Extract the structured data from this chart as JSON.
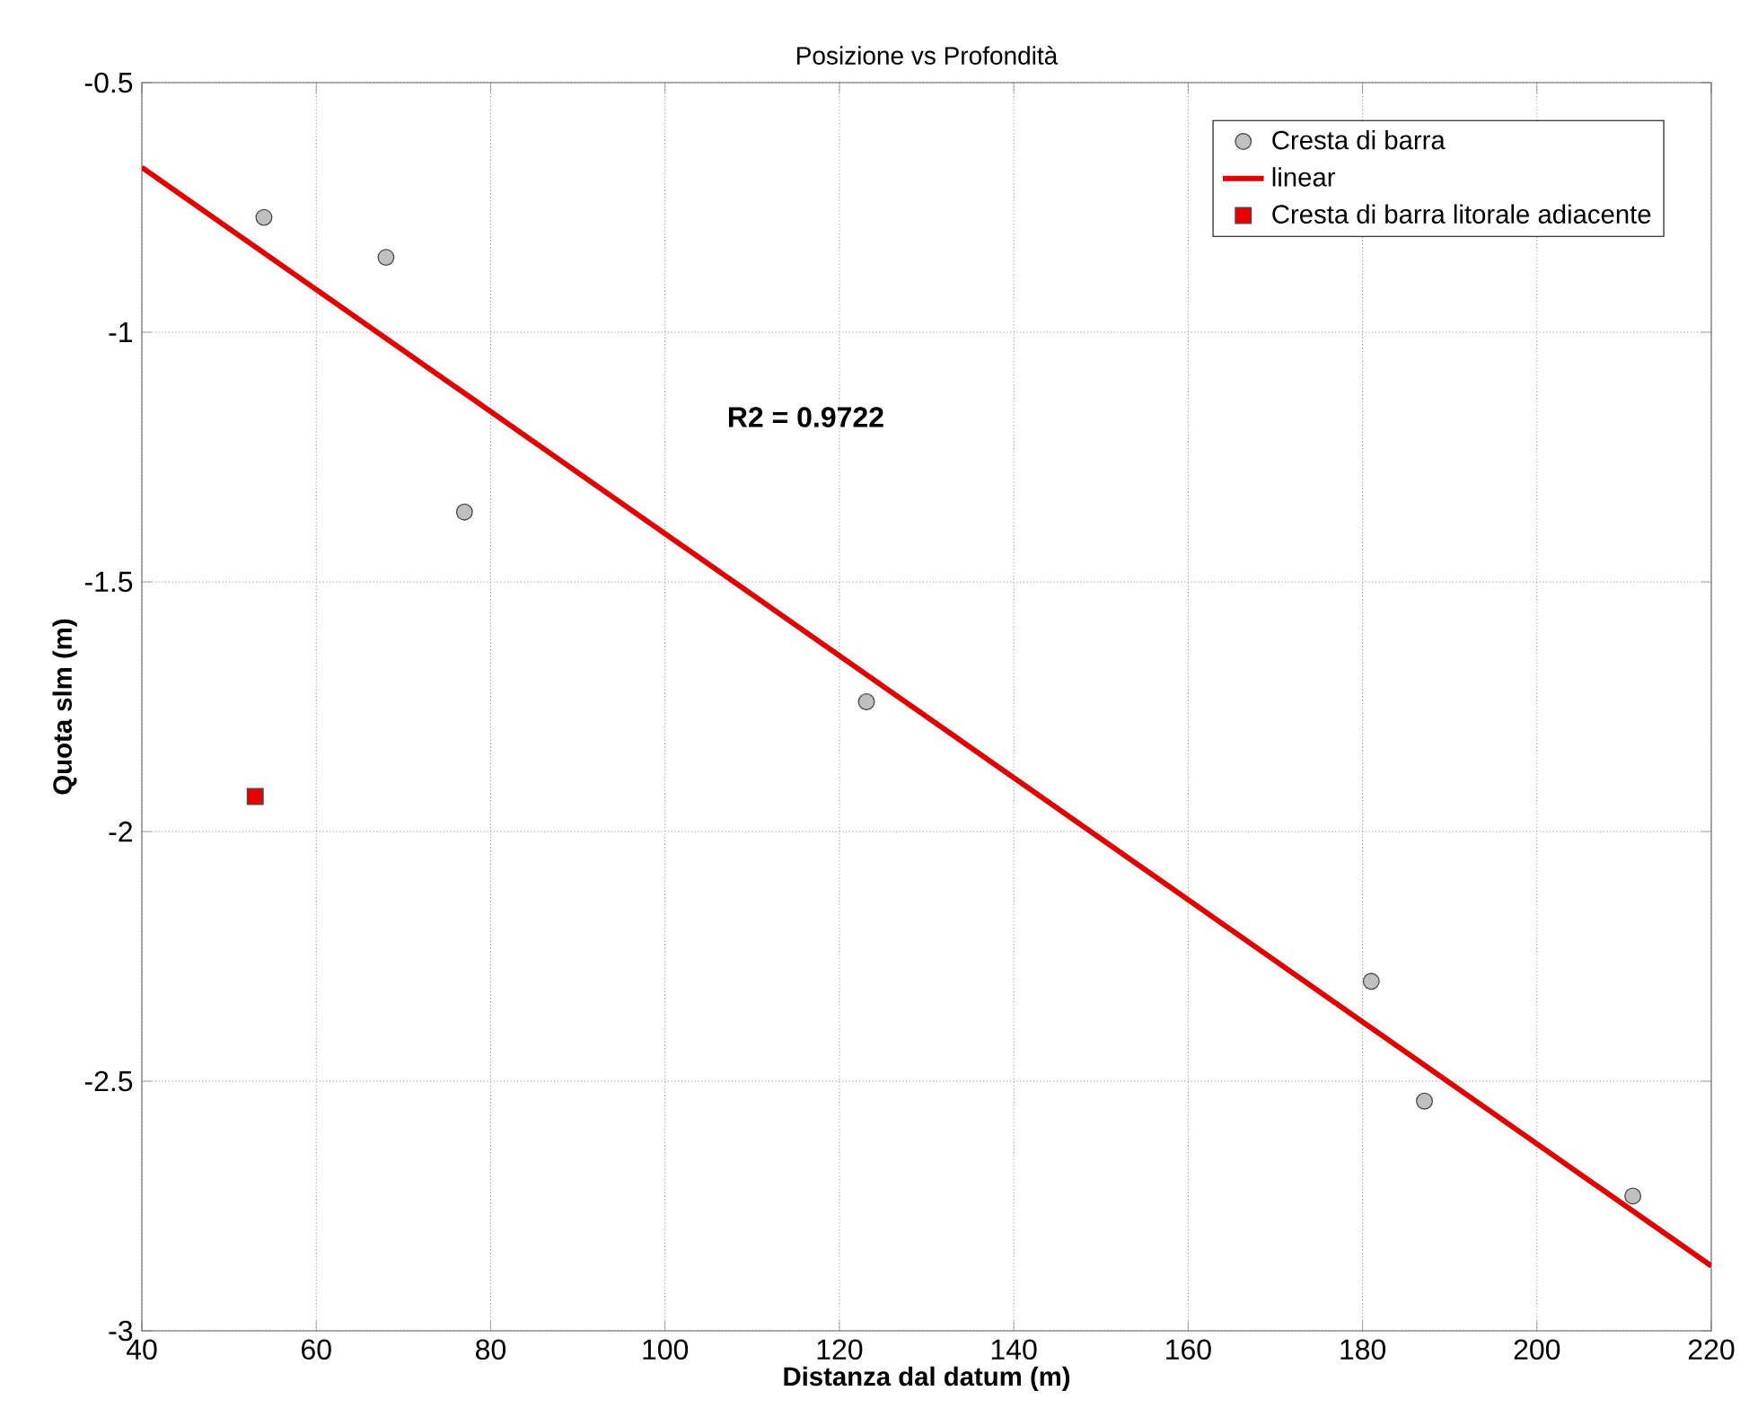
{
  "chart_data": {
    "type": "scatter",
    "title": "Posizione vs Profondità",
    "xlabel": "Distanza dal datum (m)",
    "ylabel": "Quota slm (m)",
    "xlim": [
      40,
      220
    ],
    "ylim": [
      -3,
      -0.5
    ],
    "xticks": [
      40,
      60,
      80,
      100,
      120,
      140,
      160,
      180,
      200,
      220
    ],
    "yticks": [
      -3,
      -2.5,
      -2,
      -1.5,
      -1,
      -0.5
    ],
    "grid": true,
    "legend": "top right",
    "annotations": [
      "R2 = 0.9722"
    ],
    "series": [
      {
        "name": "Cresta di barra",
        "marker": "circle",
        "color": "#c0c0c0",
        "x": [
          54,
          68,
          77,
          123.1,
          181,
          187.1,
          211
        ],
        "values": [
          -0.77,
          -0.85,
          -1.36,
          -1.74,
          -2.3,
          -2.54,
          -2.73
        ]
      },
      {
        "name": "linear",
        "type": "line",
        "marker": "none",
        "line_style": "solid",
        "color": "#e00000",
        "x": [
          40,
          220
        ],
        "values": [
          -0.67,
          -2.87
        ]
      },
      {
        "name": "Cresta di barra litorale adiacente",
        "marker": "square",
        "color": "#e80000",
        "x": [
          53
        ],
        "values": [
          -1.93
        ]
      }
    ]
  }
}
